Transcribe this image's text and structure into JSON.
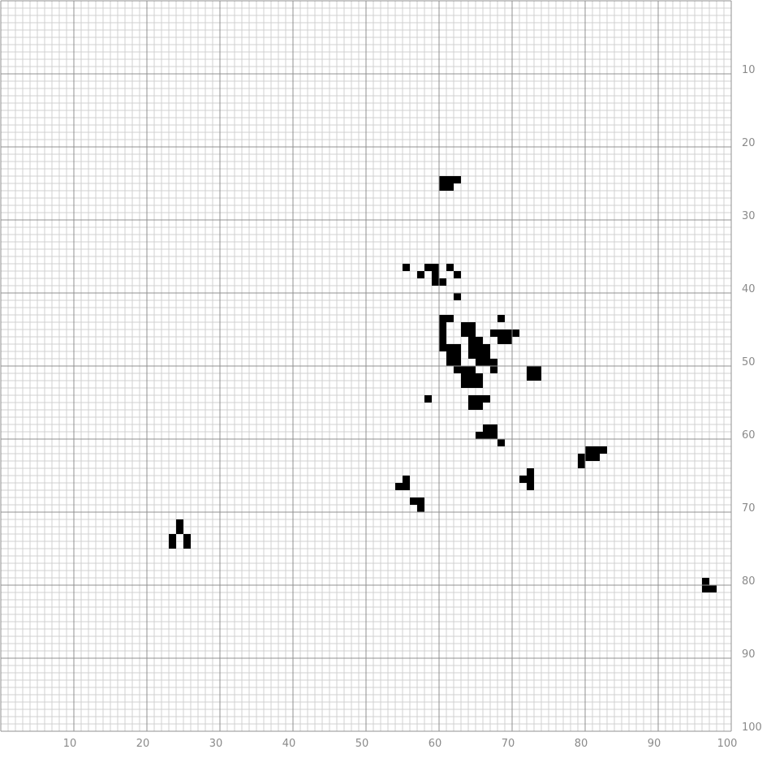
{
  "chart_data": {
    "type": "heatmap",
    "title": "",
    "xlabel": "",
    "ylabel": "",
    "xlim": [
      0,
      100
    ],
    "ylim": [
      0,
      100
    ],
    "y_axis_direction": "down",
    "grid": true,
    "grid_minor_step": 1,
    "grid_major_step": 10,
    "legend": "none",
    "x_ticks": [
      10,
      20,
      30,
      40,
      50,
      60,
      70,
      80,
      90,
      100
    ],
    "y_ticks": [
      10,
      20,
      30,
      40,
      50,
      60,
      70,
      80,
      90,
      100
    ],
    "colors": {
      "filled": "#000000",
      "minor_grid": "#d0d0d0",
      "major_grid": "#909090",
      "tick_text": "#8a8a8a"
    },
    "filled_cells": [
      [
        61,
        25
      ],
      [
        61,
        26
      ],
      [
        62,
        25
      ],
      [
        62,
        26
      ],
      [
        63,
        25
      ],
      [
        56,
        37
      ],
      [
        59,
        37
      ],
      [
        60,
        37
      ],
      [
        60,
        38
      ],
      [
        60,
        39
      ],
      [
        61,
        39
      ],
      [
        62,
        37
      ],
      [
        58,
        38
      ],
      [
        63,
        38
      ],
      [
        63,
        41
      ],
      [
        61,
        44
      ],
      [
        61,
        45
      ],
      [
        61,
        46
      ],
      [
        61,
        47
      ],
      [
        61,
        48
      ],
      [
        62,
        44
      ],
      [
        64,
        45
      ],
      [
        64,
        46
      ],
      [
        65,
        45
      ],
      [
        65,
        46
      ],
      [
        65,
        47
      ],
      [
        65,
        48
      ],
      [
        65,
        49
      ],
      [
        62,
        48
      ],
      [
        62,
        49
      ],
      [
        62,
        50
      ],
      [
        63,
        48
      ],
      [
        63,
        49
      ],
      [
        63,
        50
      ],
      [
        66,
        47
      ],
      [
        66,
        48
      ],
      [
        66,
        49
      ],
      [
        66,
        50
      ],
      [
        67,
        48
      ],
      [
        67,
        49
      ],
      [
        67,
        50
      ],
      [
        64,
        51
      ],
      [
        64,
        52
      ],
      [
        64,
        53
      ],
      [
        65,
        52
      ],
      [
        65,
        53
      ],
      [
        66,
        52
      ],
      [
        66,
        53
      ],
      [
        68,
        46
      ],
      [
        69,
        44
      ],
      [
        69,
        46
      ],
      [
        69,
        47
      ],
      [
        70,
        46
      ],
      [
        70,
        47
      ],
      [
        71,
        46
      ],
      [
        68,
        50
      ],
      [
        68,
        51
      ],
      [
        63,
        51
      ],
      [
        65,
        51
      ],
      [
        73,
        51
      ],
      [
        73,
        52
      ],
      [
        74,
        51
      ],
      [
        74,
        52
      ],
      [
        59,
        55
      ],
      [
        65,
        55
      ],
      [
        65,
        56
      ],
      [
        66,
        55
      ],
      [
        66,
        56
      ],
      [
        67,
        55
      ],
      [
        67,
        59
      ],
      [
        68,
        59
      ],
      [
        66,
        60
      ],
      [
        67,
        60
      ],
      [
        68,
        60
      ],
      [
        69,
        61
      ],
      [
        80,
        63
      ],
      [
        80,
        64
      ],
      [
        81,
        62
      ],
      [
        81,
        63
      ],
      [
        82,
        62
      ],
      [
        82,
        63
      ],
      [
        83,
        62
      ],
      [
        73,
        65
      ],
      [
        73,
        66
      ],
      [
        73,
        67
      ],
      [
        72,
        66
      ],
      [
        56,
        66
      ],
      [
        56,
        67
      ],
      [
        55,
        67
      ],
      [
        57,
        69
      ],
      [
        58,
        69
      ],
      [
        58,
        70
      ],
      [
        25,
        72
      ],
      [
        25,
        73
      ],
      [
        24,
        74
      ],
      [
        24,
        75
      ],
      [
        26,
        74
      ],
      [
        26,
        75
      ],
      [
        97,
        80
      ],
      [
        97,
        81
      ],
      [
        98,
        81
      ]
    ]
  }
}
